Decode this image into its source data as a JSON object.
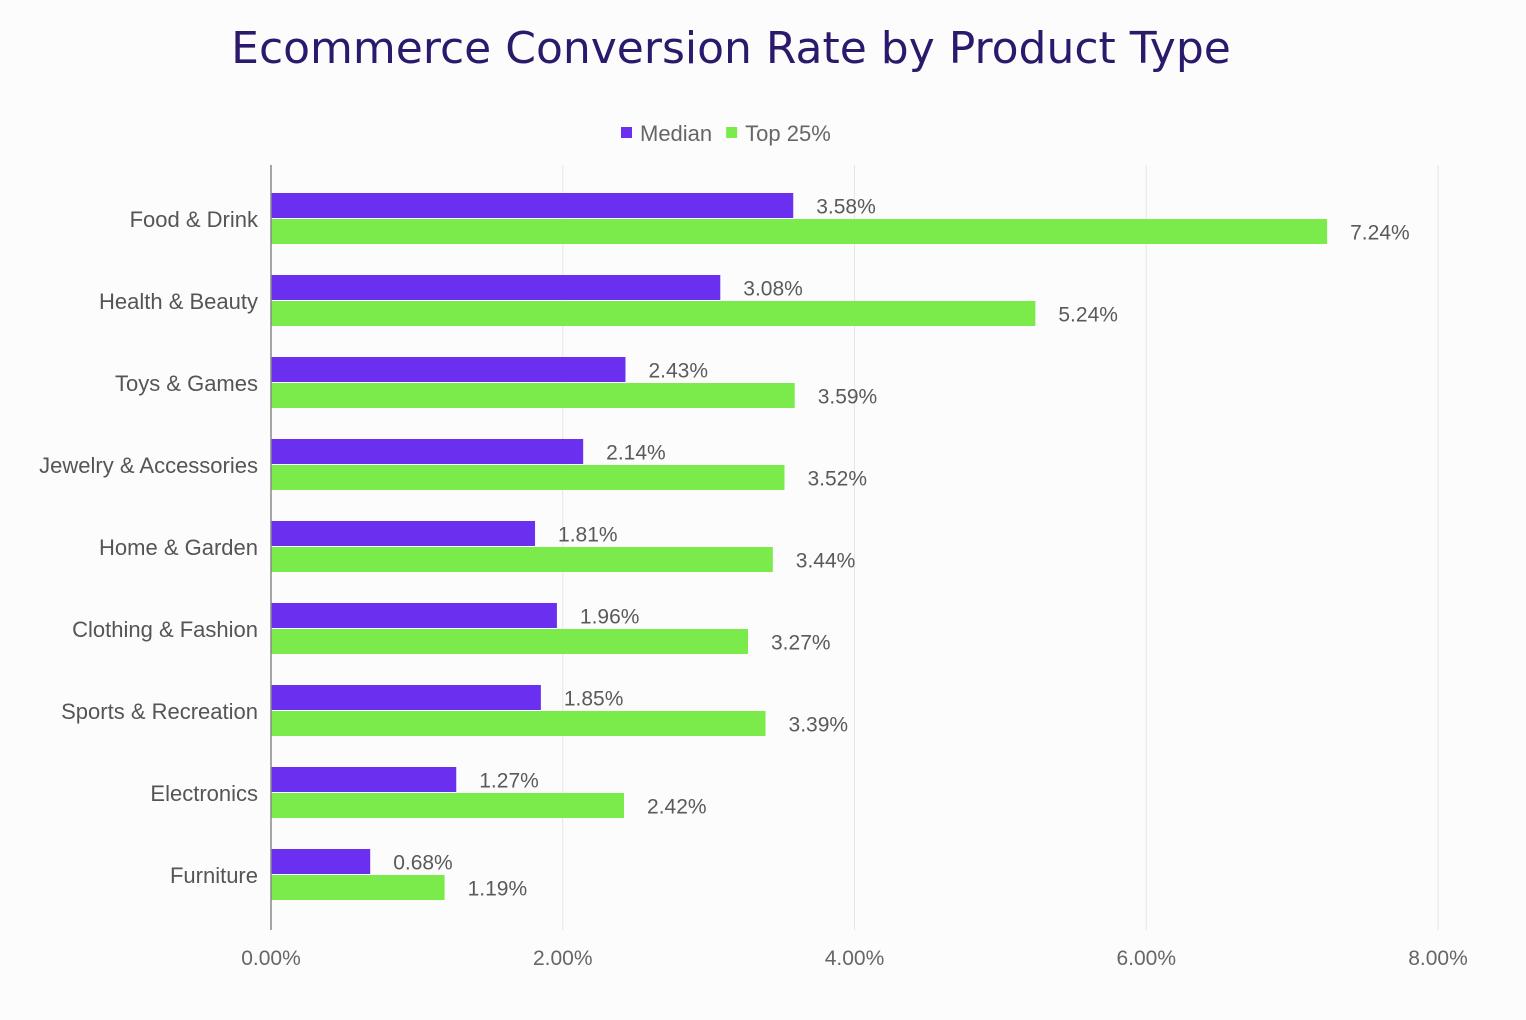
{
  "chart_data": {
    "type": "bar",
    "orientation": "horizontal",
    "title": "Ecommerce Conversion Rate by Product Type",
    "xlabel": "",
    "ylabel": "",
    "xlim": [
      0,
      8
    ],
    "x_ticks": [
      "0.00%",
      "2.00%",
      "4.00%",
      "6.00%",
      "8.00%"
    ],
    "x_tick_values": [
      0,
      2,
      4,
      6,
      8
    ],
    "grid": true,
    "legend_position": "top",
    "categories": [
      "Food & Drink",
      "Health & Beauty",
      "Toys & Games",
      "Jewelry & Accessories",
      "Home & Garden",
      "Clothing & Fashion",
      "Sports & Recreation",
      "Electronics",
      "Furniture"
    ],
    "series": [
      {
        "name": "Median",
        "color": "#6b2ff0",
        "values": [
          3.58,
          3.08,
          2.43,
          2.14,
          1.81,
          1.96,
          1.85,
          1.27,
          0.68
        ],
        "labels": [
          "3.58%",
          "3.08%",
          "2.43%",
          "2.14%",
          "1.81%",
          "1.96%",
          "1.85%",
          "1.27%",
          "0.68%"
        ]
      },
      {
        "name": "Top 25%",
        "color": "#7aeb4a",
        "values": [
          7.24,
          5.24,
          3.59,
          3.52,
          3.44,
          3.27,
          3.39,
          2.42,
          1.19
        ],
        "labels": [
          "7.24%",
          "5.24%",
          "3.59%",
          "3.52%",
          "3.44%",
          "3.27%",
          "3.39%",
          "2.42%",
          "1.19%"
        ]
      }
    ]
  }
}
